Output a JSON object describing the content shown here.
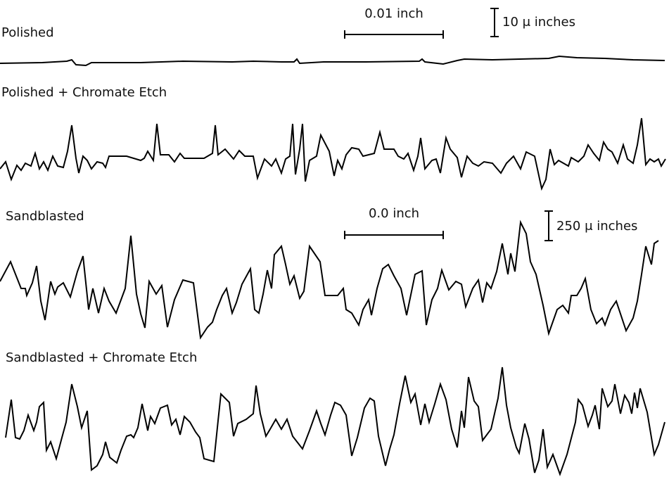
{
  "profiles": [
    {
      "label": "Polished"
    },
    {
      "label": "Polished + Chromate Etch"
    },
    {
      "label": "Sandblasted"
    },
    {
      "label": "Sandblasted + Chromate Etch"
    }
  ],
  "scale_bars": [
    {
      "horizontal": "0.01 inch",
      "vertical": "10 μ inches"
    },
    {
      "horizontal": "0.0 inch",
      "vertical": "250 μ inches"
    }
  ]
}
